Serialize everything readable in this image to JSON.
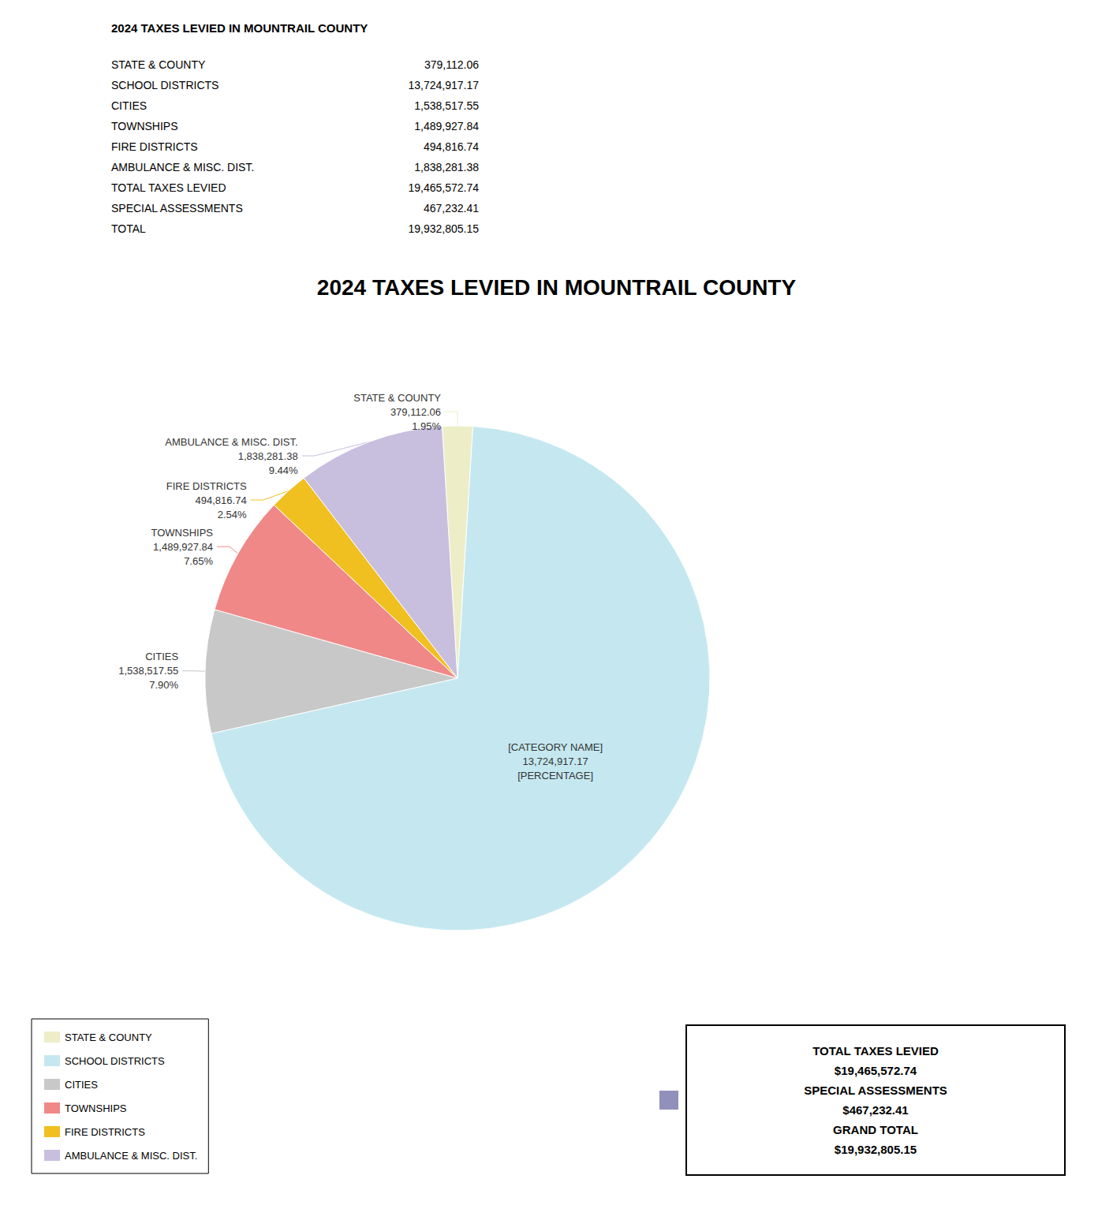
{
  "chart_data": {
    "type": "pie",
    "title": "2024 TAXES LEVIED IN MOUNTRAIL COUNTY",
    "categories": [
      "STATE & COUNTY",
      "SCHOOL DISTRICTS",
      "CITIES",
      "TOWNSHIPS",
      "FIRE DISTRICTS",
      "AMBULANCE & MISC. DIST."
    ],
    "values": [
      379112.06,
      13724917.17,
      1538517.55,
      1489927.84,
      494816.74,
      1838281.38
    ],
    "value_labels": [
      "STATE & COUNTY\n379,112.06\n1.95%",
      "[CATEGORY NAME]\n13,724,917.17\n[PERCENTAGE]",
      "CITIES\n1,538,517.55\n7.90%",
      "TOWNSHIPS\n1,489,927.84\n7.65%",
      "FIRE DISTRICTS\n494,816.74\n2.54%",
      "AMBULANCE & MISC. DIST.\n1,838,281.38\n9.44%"
    ],
    "colors": [
      "#ededc8",
      "#c5e8f0",
      "#c8c8c8",
      "#f08888",
      "#f0c020",
      "#c8bedd"
    ],
    "data_labels": true,
    "legend": "lower left",
    "table": {
      "title": "2024 TAXES LEVIED IN MOUNTRAIL COUNTY",
      "rows": [
        [
          "STATE & COUNTY",
          "379,112.06"
        ],
        [
          "SCHOOL DISTRICTS",
          "13,724,917.17"
        ],
        [
          "CITIES",
          "1,538,517.55"
        ],
        [
          "TOWNSHIPS",
          "1,489,927.84"
        ],
        [
          "FIRE DISTRICTS",
          "494,816.74"
        ],
        [
          "AMBULANCE & MISC. DIST.",
          "1,838,281.38"
        ],
        [
          "TOTAL TAXES LEVIED",
          "19,465,572.74"
        ],
        [
          "SPECIAL ASSESSMENTS",
          "467,232.41"
        ],
        [
          "TOTAL",
          "19,932,805.15"
        ]
      ]
    },
    "summary": {
      "lines": [
        "TOTAL TAXES LEVIED",
        "$19,465,572.74",
        "SPECIAL ASSESSMENTS",
        "$467,232.41",
        "GRAND TOTAL",
        "$19,932,805.15"
      ],
      "color": "#9090bb"
    }
  }
}
